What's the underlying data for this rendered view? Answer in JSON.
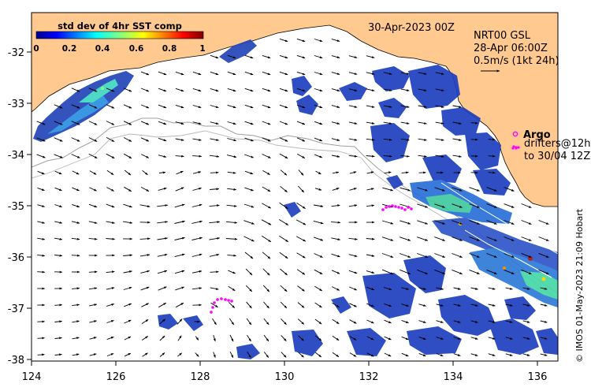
{
  "header": {
    "date_label": "30-Apr-2023 00Z",
    "product_label": "NRT00 GSL",
    "product_time": "28-Apr 06:00Z",
    "scale_label": "0.5m/s (1kt 24h)"
  },
  "colorbar": {
    "title": "std dev of 4hr SST comp",
    "ticks": [
      "0",
      "0.2",
      "0.4",
      "0.6",
      "0.8",
      "1"
    ],
    "range": [
      0,
      1
    ]
  },
  "legend": {
    "argo_label": "Argo",
    "drifters_label": "drifters@12h",
    "drifters_range": "to 30/04 12Z"
  },
  "credit": "© IMOS 01-May-2023 21:09 Hobart",
  "colors": {
    "land": "#ffc98f",
    "argo": "#ff00ff",
    "drifter": "#ff00ff",
    "high_sst_std": "#b22222",
    "low_sst_std": "#1a3fa0"
  },
  "chart_data": {
    "type": "map",
    "x_axis": {
      "ticks": [
        "124",
        "126",
        "128",
        "130",
        "132",
        "134",
        "136"
      ],
      "range": [
        124,
        136.5
      ]
    },
    "y_axis": {
      "ticks": [
        "-32",
        "-33",
        "-34",
        "-35",
        "-36",
        "-37",
        "-38"
      ],
      "range": [
        -38.1,
        -31.3
      ]
    },
    "grid": false
  }
}
